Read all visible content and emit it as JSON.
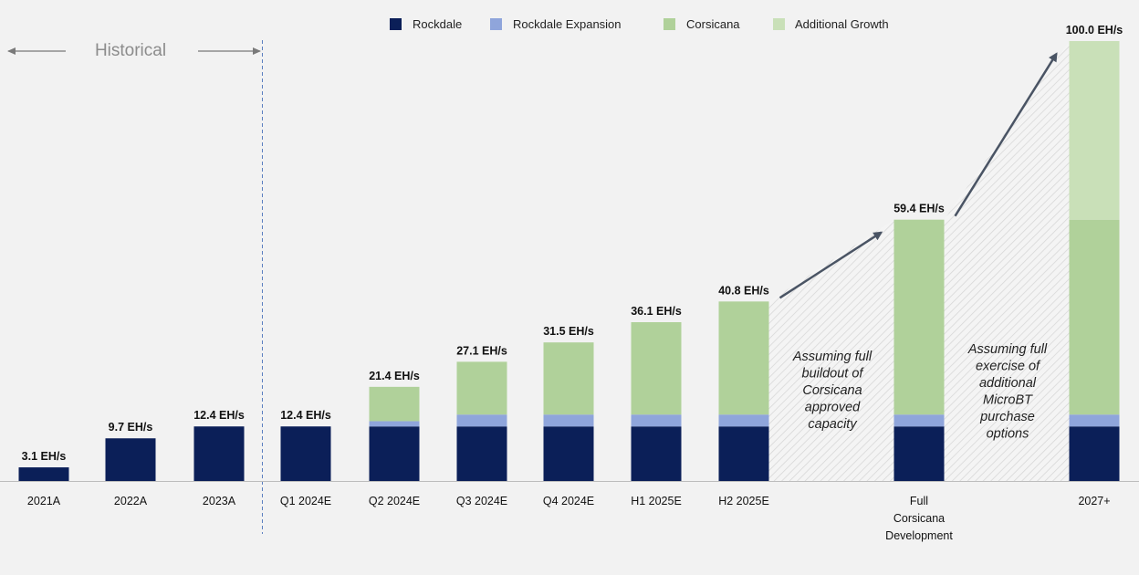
{
  "chart_data": {
    "type": "bar",
    "stacked": true,
    "categories": [
      [
        "2021A"
      ],
      [
        "2022A"
      ],
      [
        "2023A"
      ],
      [
        "Q1 2024E"
      ],
      [
        "Q2 2024E"
      ],
      [
        "Q3 2024E"
      ],
      [
        "Q4 2024E"
      ],
      [
        "H1 2025E"
      ],
      [
        "H2 2025E"
      ],
      [
        "Full",
        "Corsicana",
        "Development"
      ],
      [
        "2027+"
      ]
    ],
    "series": [
      {
        "name": "Rockdale",
        "color": "#0b1f58",
        "values": [
          3.1,
          9.7,
          12.4,
          12.4,
          12.4,
          12.4,
          12.4,
          12.4,
          12.4,
          12.4,
          12.4
        ]
      },
      {
        "name": "Rockdale Expansion",
        "color": "#8fa5db",
        "values": [
          0,
          0,
          0,
          0,
          1.2,
          2.7,
          2.7,
          2.7,
          2.7,
          2.7,
          2.7
        ]
      },
      {
        "name": "Corsicana",
        "color": "#b0d19a",
        "values": [
          0,
          0,
          0,
          0,
          7.8,
          12.0,
          16.4,
          21.0,
          25.7,
          44.3,
          44.3
        ]
      },
      {
        "name": "Additional Growth",
        "color": "#c9e0b8",
        "values": [
          0,
          0,
          0,
          0,
          0,
          0,
          0,
          0,
          0,
          0,
          40.6
        ]
      }
    ],
    "totals": [
      3.1,
      9.7,
      12.4,
      12.4,
      21.4,
      27.1,
      31.5,
      36.1,
      40.8,
      59.4,
      100.0
    ],
    "value_labels": [
      "3.1 EH/s",
      "9.7 EH/s",
      "12.4 EH/s",
      "12.4 EH/s",
      "21.4 EH/s",
      "27.1 EH/s",
      "31.5 EH/s",
      "36.1 EH/s",
      "40.8 EH/s",
      "59.4 EH/s",
      "100.0 EH/s"
    ],
    "ylim": [
      0,
      100
    ],
    "legend_position": "top",
    "historical_label": "Historical",
    "annotations": [
      {
        "lines": [
          "Assuming full",
          "buildout of",
          "Corsicana",
          "approved",
          "capacity"
        ]
      },
      {
        "lines": [
          "Assuming full",
          "exercise of",
          "additional",
          "MicroBT",
          "purchase",
          "options"
        ]
      }
    ],
    "colors": {
      "background": "#f2f2f2",
      "arrow": "#4a5464",
      "divider": "#5b7fc0",
      "axis": "#bdbdbd"
    }
  }
}
